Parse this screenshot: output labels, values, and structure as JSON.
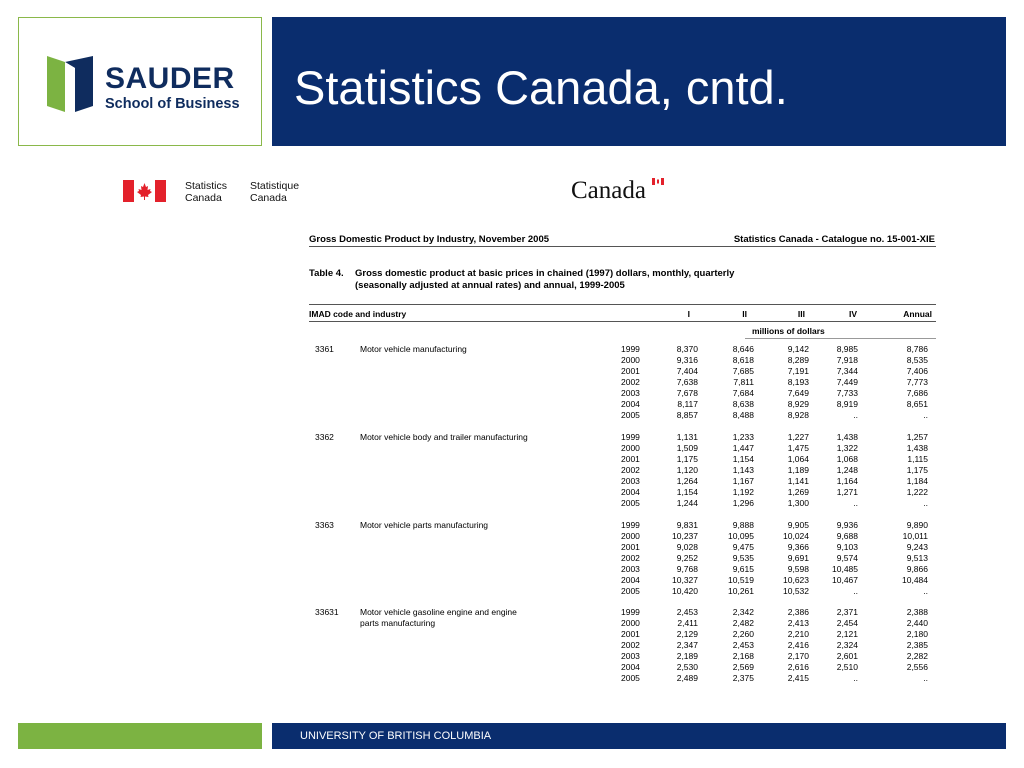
{
  "header": {
    "logo_name": "SAUDER",
    "logo_sub": "School of Business",
    "title": "Statistics Canada, cntd."
  },
  "statcan": {
    "en_line1": "Statistics",
    "en_line2": "Canada",
    "fr_line1": "Statistique",
    "fr_line2": "Canada",
    "wordmark": "Canada"
  },
  "report": {
    "title": "Gross Domestic Product by Industry, November 2005",
    "catalogue": "Statistics Canada - Catalogue no. 15-001-XIE",
    "table_number": "Table 4.",
    "caption_line1": "Gross domestic product at basic prices in chained (1997) dollars, monthly, quarterly",
    "caption_line2": "(seasonally adjusted at annual rates) and annual, 1999-2005",
    "columns": {
      "industry": "IMAD code and industry",
      "q1": "I",
      "q2": "II",
      "q3": "III",
      "q4": "IV",
      "annual": "Annual"
    },
    "unit": "millions of dollars",
    "groups": [
      {
        "code": "3361",
        "industry": [
          "Motor vehicle manufacturing"
        ],
        "rows": [
          [
            "1999",
            "8,370",
            "8,646",
            "9,142",
            "8,985",
            "8,786"
          ],
          [
            "2000",
            "9,316",
            "8,618",
            "8,289",
            "7,918",
            "8,535"
          ],
          [
            "2001",
            "7,404",
            "7,685",
            "7,191",
            "7,344",
            "7,406"
          ],
          [
            "2002",
            "7,638",
            "7,811",
            "8,193",
            "7,449",
            "7,773"
          ],
          [
            "2003",
            "7,678",
            "7,684",
            "7,649",
            "7,733",
            "7,686"
          ],
          [
            "2004",
            "8,117",
            "8,638",
            "8,929",
            "8,919",
            "8,651"
          ],
          [
            "2005",
            "8,857",
            "8,488",
            "8,928",
            "..",
            ".."
          ]
        ]
      },
      {
        "code": "3362",
        "industry": [
          "Motor vehicle body and trailer manufacturing"
        ],
        "rows": [
          [
            "1999",
            "1,131",
            "1,233",
            "1,227",
            "1,438",
            "1,257"
          ],
          [
            "2000",
            "1,509",
            "1,447",
            "1,475",
            "1,322",
            "1,438"
          ],
          [
            "2001",
            "1,175",
            "1,154",
            "1,064",
            "1,068",
            "1,115"
          ],
          [
            "2002",
            "1,120",
            "1,143",
            "1,189",
            "1,248",
            "1,175"
          ],
          [
            "2003",
            "1,264",
            "1,167",
            "1,141",
            "1,164",
            "1,184"
          ],
          [
            "2004",
            "1,154",
            "1,192",
            "1,269",
            "1,271",
            "1,222"
          ],
          [
            "2005",
            "1,244",
            "1,296",
            "1,300",
            "..",
            ".."
          ]
        ]
      },
      {
        "code": "3363",
        "industry": [
          "Motor vehicle parts manufacturing"
        ],
        "rows": [
          [
            "1999",
            "9,831",
            "9,888",
            "9,905",
            "9,936",
            "9,890"
          ],
          [
            "2000",
            "10,237",
            "10,095",
            "10,024",
            "9,688",
            "10,011"
          ],
          [
            "2001",
            "9,028",
            "9,475",
            "9,366",
            "9,103",
            "9,243"
          ],
          [
            "2002",
            "9,252",
            "9,535",
            "9,691",
            "9,574",
            "9,513"
          ],
          [
            "2003",
            "9,768",
            "9,615",
            "9,598",
            "10,485",
            "9,866"
          ],
          [
            "2004",
            "10,327",
            "10,519",
            "10,623",
            "10,467",
            "10,484"
          ],
          [
            "2005",
            "10,420",
            "10,261",
            "10,532",
            "..",
            ".."
          ]
        ]
      },
      {
        "code": "33631",
        "industry": [
          "Motor vehicle gasoline engine and engine",
          "parts manufacturing"
        ],
        "rows": [
          [
            "1999",
            "2,453",
            "2,342",
            "2,386",
            "2,371",
            "2,388"
          ],
          [
            "2000",
            "2,411",
            "2,482",
            "2,413",
            "2,454",
            "2,440"
          ],
          [
            "2001",
            "2,129",
            "2,260",
            "2,210",
            "2,121",
            "2,180"
          ],
          [
            "2002",
            "2,347",
            "2,453",
            "2,416",
            "2,324",
            "2,385"
          ],
          [
            "2003",
            "2,189",
            "2,168",
            "2,170",
            "2,601",
            "2,282"
          ],
          [
            "2004",
            "2,530",
            "2,569",
            "2,616",
            "2,510",
            "2,556"
          ],
          [
            "2005",
            "2,489",
            "2,375",
            "2,415",
            "..",
            ".."
          ]
        ]
      }
    ]
  },
  "footer": {
    "text": "UNIVERSITY OF BRITISH COLUMBIA"
  },
  "colors": {
    "navy": "#0a2d6e",
    "green": "#7cb342",
    "flag_red": "#e3212b"
  }
}
